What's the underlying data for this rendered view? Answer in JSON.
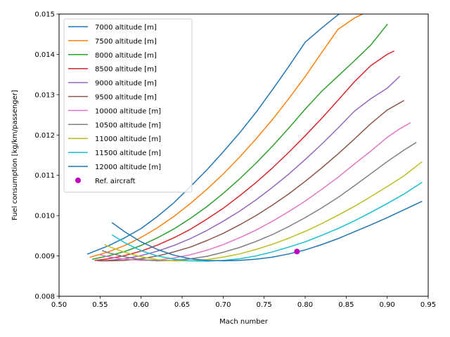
{
  "chart_data": {
    "type": "line",
    "xlabel": "Mach number",
    "ylabel": "Fuel consumption [kg/km/passenger]",
    "xlim": [
      0.5,
      0.95
    ],
    "ylim": [
      0.008,
      0.015
    ],
    "xticks": [
      "0.50",
      "0.55",
      "0.60",
      "0.65",
      "0.70",
      "0.75",
      "0.80",
      "0.85",
      "0.90",
      "0.95"
    ],
    "yticks": [
      "0.008",
      "0.009",
      "0.010",
      "0.011",
      "0.012",
      "0.013",
      "0.014",
      "0.015"
    ],
    "grid": false,
    "legend_position": "top-left",
    "series": [
      {
        "name": "7000 altitude [m]",
        "color": "#1f77b4",
        "x": [
          0.535,
          0.56,
          0.58,
          0.6,
          0.62,
          0.64,
          0.66,
          0.68,
          0.7,
          0.72,
          0.74,
          0.76,
          0.78,
          0.8,
          0.82,
          0.84,
          0.85,
          0.86
        ],
        "y": [
          0.00905,
          0.00925,
          0.00945,
          0.00968,
          0.00998,
          0.01032,
          0.01072,
          0.01113,
          0.01158,
          0.01205,
          0.01256,
          0.01312,
          0.0137,
          0.0143,
          0.01465,
          0.01498,
          0.0151,
          0.0152
        ]
      },
      {
        "name": "7500 altitude [m]",
        "color": "#ff7f0e",
        "x": [
          0.538,
          0.56,
          0.58,
          0.6,
          0.62,
          0.64,
          0.66,
          0.68,
          0.7,
          0.72,
          0.74,
          0.76,
          0.78,
          0.8,
          0.82,
          0.84,
          0.86,
          0.875,
          0.885
        ],
        "y": [
          0.00897,
          0.0091,
          0.00926,
          0.00946,
          0.0097,
          0.00998,
          0.0103,
          0.01065,
          0.01103,
          0.01145,
          0.0119,
          0.01238,
          0.0129,
          0.01345,
          0.01404,
          0.01462,
          0.0149,
          0.01505,
          0.0152
        ]
      },
      {
        "name": "8000 altitude [m]",
        "color": "#2ca02c",
        "x": [
          0.541,
          0.56,
          0.58,
          0.6,
          0.62,
          0.64,
          0.66,
          0.68,
          0.7,
          0.72,
          0.74,
          0.76,
          0.78,
          0.8,
          0.82,
          0.84,
          0.86,
          0.88,
          0.9
        ],
        "y": [
          0.00892,
          0.009,
          0.00911,
          0.00926,
          0.00945,
          0.00967,
          0.00993,
          0.01022,
          0.01055,
          0.01091,
          0.0113,
          0.01172,
          0.01217,
          0.01264,
          0.01308,
          0.01346,
          0.01384,
          0.01423,
          0.01474
        ]
      },
      {
        "name": "8500 altitude [m]",
        "color": "#d62728",
        "x": [
          0.544,
          0.56,
          0.58,
          0.6,
          0.62,
          0.64,
          0.66,
          0.68,
          0.7,
          0.72,
          0.74,
          0.76,
          0.78,
          0.8,
          0.82,
          0.84,
          0.86,
          0.88,
          0.9,
          0.908
        ],
        "y": [
          0.00889,
          0.00893,
          0.00901,
          0.00912,
          0.00927,
          0.00945,
          0.00966,
          0.00991,
          0.01018,
          0.01049,
          0.01082,
          0.01118,
          0.01157,
          0.01198,
          0.01241,
          0.01286,
          0.01332,
          0.01372,
          0.014,
          0.01408
        ]
      },
      {
        "name": "9000 altitude [m]",
        "color": "#9467bd",
        "x": [
          0.547,
          0.56,
          0.58,
          0.6,
          0.62,
          0.64,
          0.66,
          0.68,
          0.7,
          0.72,
          0.74,
          0.76,
          0.78,
          0.8,
          0.82,
          0.84,
          0.86,
          0.88,
          0.9,
          0.915
        ],
        "y": [
          0.00888,
          0.00889,
          0.00893,
          0.00901,
          0.00912,
          0.00926,
          0.00943,
          0.00963,
          0.00986,
          0.01011,
          0.01039,
          0.0107,
          0.01103,
          0.01139,
          0.01177,
          0.01217,
          0.01259,
          0.0129,
          0.01316,
          0.01345
        ]
      },
      {
        "name": "9500 altitude [m]",
        "color": "#8c564b",
        "x": [
          0.55,
          0.56,
          0.58,
          0.6,
          0.62,
          0.64,
          0.66,
          0.68,
          0.7,
          0.72,
          0.74,
          0.76,
          0.78,
          0.8,
          0.82,
          0.84,
          0.86,
          0.88,
          0.9,
          0.92
        ],
        "y": [
          0.00888,
          0.00888,
          0.00889,
          0.00893,
          0.009,
          0.0091,
          0.00922,
          0.00938,
          0.00956,
          0.00977,
          0.01,
          0.01026,
          0.01054,
          0.01085,
          0.01118,
          0.01153,
          0.0119,
          0.01228,
          0.01262,
          0.01285
        ]
      },
      {
        "name": "10000 altitude [m]",
        "color": "#e377c2",
        "x": [
          0.55,
          0.56,
          0.58,
          0.6,
          0.62,
          0.64,
          0.66,
          0.68,
          0.7,
          0.72,
          0.74,
          0.76,
          0.78,
          0.8,
          0.82,
          0.84,
          0.86,
          0.88,
          0.9,
          0.915,
          0.928
        ],
        "y": [
          0.00903,
          0.00898,
          0.00892,
          0.00889,
          0.0089,
          0.00895,
          0.00903,
          0.00914,
          0.00928,
          0.00945,
          0.00964,
          0.00986,
          0.0101,
          0.01036,
          0.01065,
          0.01095,
          0.01128,
          0.0116,
          0.01194,
          0.01215,
          0.0123
        ]
      },
      {
        "name": "10500 altitude [m]",
        "color": "#7f7f7f",
        "x": [
          0.553,
          0.56,
          0.58,
          0.6,
          0.62,
          0.64,
          0.66,
          0.68,
          0.7,
          0.72,
          0.74,
          0.76,
          0.78,
          0.8,
          0.82,
          0.84,
          0.86,
          0.88,
          0.9,
          0.92,
          0.935
        ],
        "y": [
          0.00913,
          0.00908,
          0.00898,
          0.00891,
          0.00888,
          0.00889,
          0.00893,
          0.00899,
          0.00909,
          0.00921,
          0.00936,
          0.00953,
          0.00973,
          0.00995,
          0.01019,
          0.01045,
          0.01074,
          0.01104,
          0.01134,
          0.01162,
          0.01181
        ]
      },
      {
        "name": "11000 altitude [m]",
        "color": "#bcbd22",
        "x": [
          0.556,
          0.56,
          0.58,
          0.6,
          0.62,
          0.64,
          0.66,
          0.68,
          0.7,
          0.72,
          0.74,
          0.76,
          0.78,
          0.8,
          0.82,
          0.84,
          0.86,
          0.88,
          0.9,
          0.92,
          0.942
        ],
        "y": [
          0.00928,
          0.00924,
          0.00909,
          0.00898,
          0.00891,
          0.00888,
          0.00888,
          0.00891,
          0.00897,
          0.00905,
          0.00916,
          0.00929,
          0.00944,
          0.00961,
          0.0098,
          0.01001,
          0.01023,
          0.01047,
          0.01072,
          0.01098,
          0.01133
        ]
      },
      {
        "name": "11500 altitude [m]",
        "color": "#17becf",
        "x": [
          0.565,
          0.58,
          0.6,
          0.62,
          0.64,
          0.66,
          0.68,
          0.7,
          0.72,
          0.74,
          0.76,
          0.78,
          0.8,
          0.82,
          0.84,
          0.86,
          0.88,
          0.9,
          0.92,
          0.942
        ],
        "y": [
          0.00952,
          0.00933,
          0.00913,
          0.009,
          0.00892,
          0.00888,
          0.00887,
          0.00889,
          0.00893,
          0.009,
          0.0091,
          0.00922,
          0.00935,
          0.00951,
          0.00968,
          0.00987,
          0.01008,
          0.0103,
          0.01053,
          0.01082
        ]
      },
      {
        "name": "12000 altitude [m]",
        "color": "#1f77b4",
        "x": [
          0.565,
          0.58,
          0.6,
          0.62,
          0.64,
          0.66,
          0.68,
          0.7,
          0.72,
          0.74,
          0.76,
          0.78,
          0.8,
          0.82,
          0.84,
          0.86,
          0.88,
          0.9,
          0.92,
          0.942
        ],
        "y": [
          0.00982,
          0.0096,
          0.00935,
          0.00916,
          0.00902,
          0.00893,
          0.00889,
          0.00888,
          0.00889,
          0.00892,
          0.00897,
          0.00905,
          0.00915,
          0.00928,
          0.00943,
          0.0096,
          0.00977,
          0.00995,
          0.01014,
          0.01035
        ]
      }
    ],
    "markers": [
      {
        "name": "Ref. aircraft",
        "color": "#bf00bf",
        "x": 0.79,
        "y": 0.00911
      }
    ]
  }
}
